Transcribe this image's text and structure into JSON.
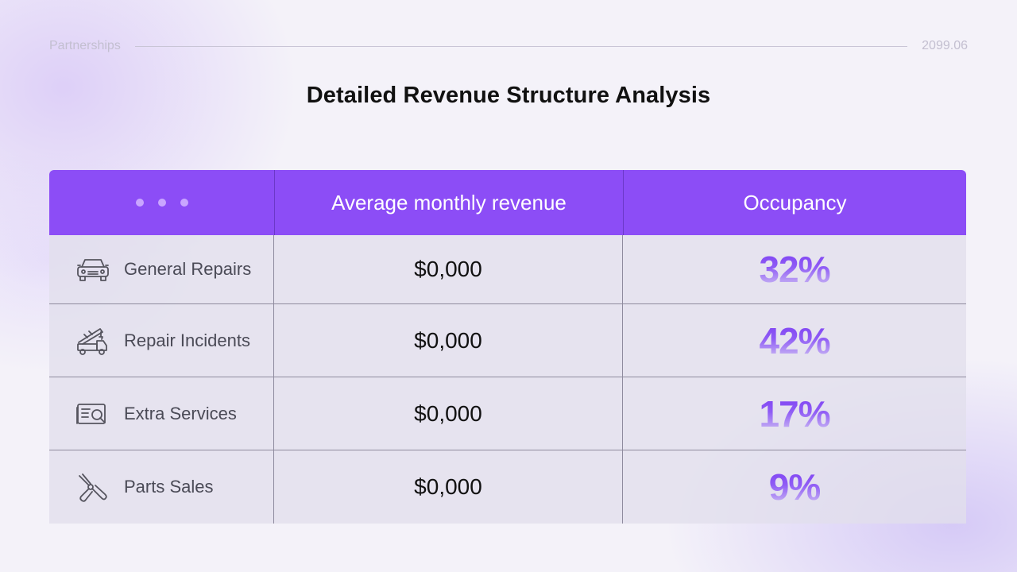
{
  "header": {
    "section": "Partnerships",
    "date": "2099.06"
  },
  "title": "Detailed Revenue Structure Analysis",
  "table": {
    "columns": [
      "",
      "Average monthly revenue",
      "Occupancy"
    ],
    "rows": [
      {
        "icon": "car-icon",
        "label": "General Repairs",
        "revenue": "$0,000",
        "occupancy": "32%"
      },
      {
        "icon": "tow-truck-icon",
        "label": "Repair Incidents",
        "revenue": "$0,000",
        "occupancy": "42%"
      },
      {
        "icon": "document-search-icon",
        "label": "Extra Services",
        "revenue": "$0,000",
        "occupancy": "17%"
      },
      {
        "icon": "pliers-icon",
        "label": "Parts Sales",
        "revenue": "$0,000",
        "occupancy": "9%"
      }
    ]
  },
  "colors": {
    "header_bg": "#8c4df6",
    "accent": "#7b3cf2"
  }
}
